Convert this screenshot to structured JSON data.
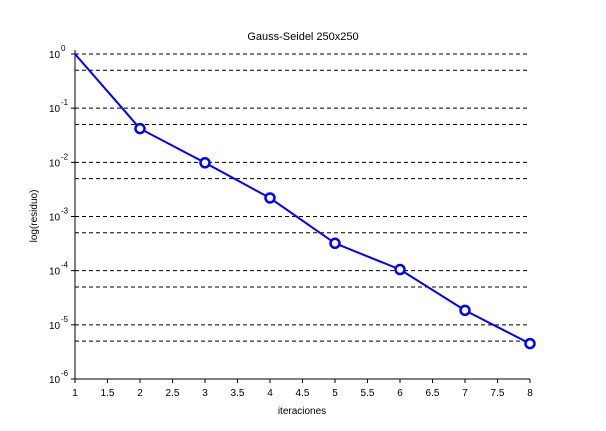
{
  "chart_data": {
    "type": "line",
    "title": "Gauss-Seidel 250x250",
    "xlabel": "iteraciones",
    "ylabel": "log(residuo)",
    "xlim": [
      1,
      8
    ],
    "ylim": [
      1e-06,
      1
    ],
    "yscale": "log",
    "x_ticks": [
      "1",
      "1.5",
      "2",
      "2.5",
      "3",
      "3.5",
      "4",
      "4.5",
      "5",
      "5.5",
      "6",
      "6.5",
      "7",
      "7.5",
      "8"
    ],
    "y_ticks": [
      {
        "base": "10",
        "exp": "0"
      },
      {
        "base": "10",
        "exp": "-1"
      },
      {
        "base": "10",
        "exp": "-2"
      },
      {
        "base": "10",
        "exp": "-3"
      },
      {
        "base": "10",
        "exp": "-4"
      },
      {
        "base": "10",
        "exp": "-5"
      },
      {
        "base": "10",
        "exp": "-6"
      }
    ],
    "grid": "dashed-horizontal",
    "series": [
      {
        "x": [
          1,
          2,
          3,
          4,
          5,
          6,
          7,
          8
        ],
        "y": [
          1.0,
          0.042,
          0.0098,
          0.0022,
          0.00032,
          0.000105,
          1.85e-05,
          4.5e-06
        ],
        "color": "#0000ff"
      }
    ]
  }
}
